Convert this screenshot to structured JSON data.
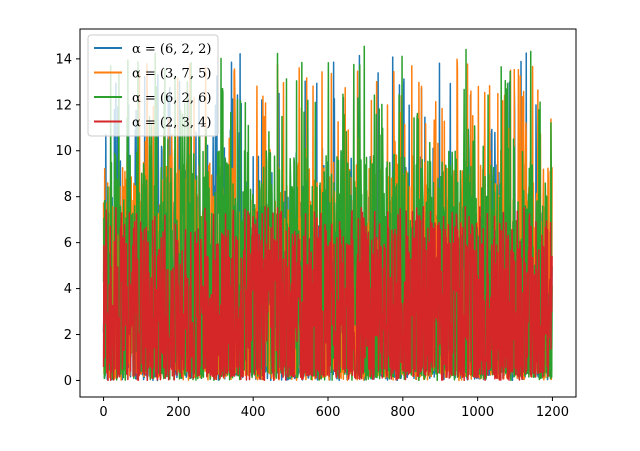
{
  "chart_data": {
    "type": "line",
    "title": "",
    "xlabel": "",
    "ylabel": "",
    "xlim": [
      -63,
      1263
    ],
    "ylim": [
      -0.72,
      15.3
    ],
    "xticks": [
      0,
      200,
      400,
      600,
      800,
      1000,
      1200
    ],
    "xtick_labels": [
      "0",
      "200",
      "400",
      "600",
      "800",
      "1000",
      "1200"
    ],
    "yticks": [
      0,
      2,
      4,
      6,
      8,
      10,
      12,
      14
    ],
    "ytick_labels": [
      "0",
      "2",
      "4",
      "6",
      "8",
      "10",
      "12",
      "14"
    ],
    "grid": false,
    "legend_position": "upper-left",
    "x_count": 1200,
    "series": [
      {
        "name": "α = (6, 2, 2)",
        "color": "#1f77b4",
        "peak": 14.3,
        "typical": [
          0.2,
          8.0
        ]
      },
      {
        "name": "α = (3, 7, 5)",
        "color": "#ff7f0e",
        "peak": 14.0,
        "typical": [
          0.1,
          9.5
        ]
      },
      {
        "name": "α = (6, 2, 6)",
        "color": "#2ca02c",
        "peak": 14.6,
        "typical": [
          0.1,
          10.0
        ]
      },
      {
        "name": "α = (2, 3, 4)",
        "color": "#d62728",
        "peak": 7.6,
        "typical": [
          0.5,
          6.8
        ]
      }
    ]
  }
}
